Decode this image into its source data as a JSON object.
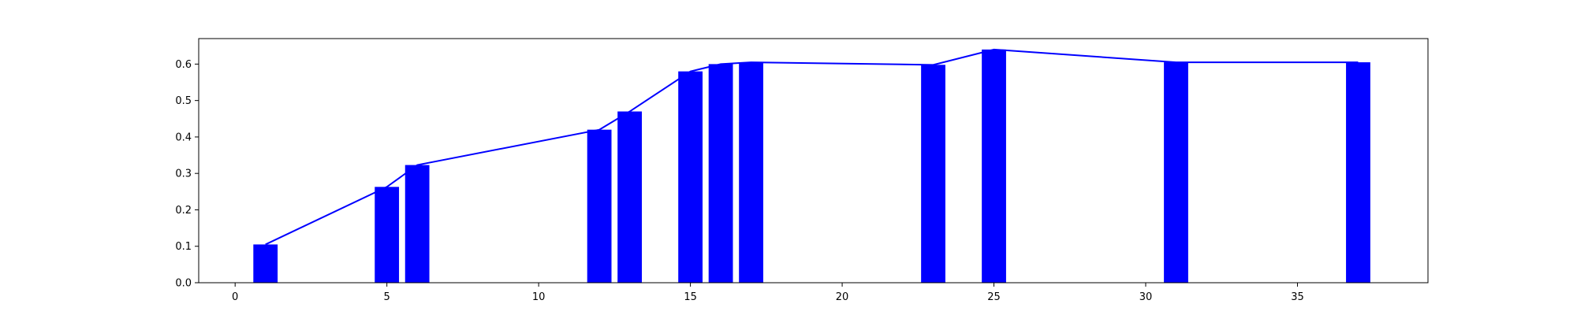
{
  "chart_data": {
    "type": "bar",
    "title": "",
    "xlabel": "",
    "ylabel": "",
    "xlim": [
      -1.2,
      39.3
    ],
    "ylim": [
      0,
      0.67
    ],
    "x_ticks": [
      0,
      5,
      10,
      15,
      20,
      25,
      30,
      35
    ],
    "x_tick_labels": [
      "0",
      "5",
      "10",
      "15",
      "20",
      "25",
      "30",
      "35"
    ],
    "y_ticks": [
      0.0,
      0.1,
      0.2,
      0.3,
      0.4,
      0.5,
      0.6
    ],
    "y_tick_labels": [
      "0.0",
      "0.1",
      "0.2",
      "0.3",
      "0.4",
      "0.5",
      "0.6"
    ],
    "grid": false,
    "legend": "none",
    "bar_width": 0.8,
    "series": [
      {
        "kind": "bar",
        "color": "#0000ff",
        "x": [
          1,
          5,
          6,
          12,
          13,
          15,
          16,
          17,
          23,
          25,
          31,
          37
        ],
        "values": [
          0.105,
          0.263,
          0.323,
          0.42,
          0.47,
          0.58,
          0.6,
          0.605,
          0.598,
          0.64,
          0.605,
          0.605
        ]
      },
      {
        "kind": "line",
        "color": "#0000ff",
        "x": [
          1,
          5,
          6,
          12,
          13,
          15,
          16,
          17,
          23,
          25,
          31,
          37
        ],
        "values": [
          0.105,
          0.263,
          0.323,
          0.42,
          0.47,
          0.58,
          0.6,
          0.605,
          0.598,
          0.64,
          0.605,
          0.605
        ]
      }
    ]
  }
}
